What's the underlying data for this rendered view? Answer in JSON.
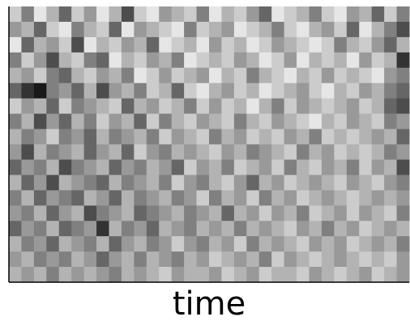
{
  "chart_data": {
    "type": "heatmap",
    "x_label": "time",
    "cmap": "gray_r",
    "zlim": [
      0,
      1
    ],
    "z": [
      [
        0.2,
        0.5,
        0.1,
        0.3,
        0.6,
        0.2,
        0.4,
        0.1,
        0.3,
        0.7,
        0.2,
        0.1,
        0.4,
        0.3,
        0.2,
        0.5,
        0.1,
        0.3,
        0.2,
        0.4,
        0.6,
        0.1,
        0.2,
        0.3,
        0.5,
        0.2,
        0.1,
        0.4,
        0.3,
        0.6,
        0.2,
        0.5
      ],
      [
        0.4,
        0.3,
        0.6,
        0.2,
        0.1,
        0.5,
        0.3,
        0.2,
        0.6,
        0.1,
        0.4,
        0.3,
        0.2,
        0.1,
        0.5,
        0.2,
        0.3,
        0.4,
        0.1,
        0.2,
        0.3,
        0.5,
        0.2,
        0.1,
        0.3,
        0.4,
        0.2,
        0.6,
        0.1,
        0.3,
        0.5,
        0.7
      ],
      [
        0.1,
        0.6,
        0.3,
        0.4,
        0.2,
        0.7,
        0.1,
        0.3,
        0.2,
        0.4,
        0.3,
        0.6,
        0.1,
        0.2,
        0.3,
        0.1,
        0.4,
        0.2,
        0.3,
        0.1,
        0.2,
        0.4,
        0.3,
        0.2,
        0.1,
        0.2,
        0.5,
        0.3,
        0.2,
        0.4,
        0.6,
        0.3
      ],
      [
        0.5,
        0.2,
        0.4,
        0.7,
        0.3,
        0.2,
        0.5,
        0.6,
        0.1,
        0.3,
        0.2,
        0.4,
        0.3,
        0.5,
        0.1,
        0.2,
        0.3,
        0.2,
        0.4,
        0.3,
        0.1,
        0.2,
        0.4,
        0.1,
        0.3,
        0.2,
        0.3,
        0.1,
        0.4,
        0.2,
        0.3,
        0.8
      ],
      [
        0.3,
        0.4,
        0.2,
        0.5,
        0.6,
        0.3,
        0.2,
        0.4,
        0.3,
        0.5,
        0.1,
        0.2,
        0.4,
        0.2,
        0.3,
        0.4,
        0.1,
        0.3,
        0.2,
        0.5,
        0.3,
        0.2,
        0.1,
        0.3,
        0.2,
        0.4,
        0.2,
        0.3,
        0.2,
        0.1,
        0.4,
        0.5
      ],
      [
        0.6,
        0.8,
        0.9,
        0.5,
        0.4,
        0.6,
        0.3,
        0.7,
        0.4,
        0.3,
        0.5,
        0.2,
        0.3,
        0.6,
        0.2,
        0.1,
        0.3,
        0.4,
        0.2,
        0.3,
        0.1,
        0.2,
        0.3,
        0.4,
        0.2,
        0.1,
        0.3,
        0.2,
        0.4,
        0.3,
        0.5,
        0.6
      ],
      [
        0.2,
        0.4,
        0.3,
        0.6,
        0.2,
        0.5,
        0.4,
        0.3,
        0.2,
        0.6,
        0.3,
        0.4,
        0.2,
        0.3,
        0.5,
        0.2,
        0.4,
        0.2,
        0.3,
        0.1,
        0.3,
        0.5,
        0.2,
        0.4,
        0.3,
        0.2,
        0.3,
        0.4,
        0.2,
        0.3,
        0.6,
        0.7
      ],
      [
        0.5,
        0.3,
        0.7,
        0.4,
        0.6,
        0.3,
        0.5,
        0.2,
        0.4,
        0.3,
        0.6,
        0.2,
        0.5,
        0.3,
        0.2,
        0.4,
        0.3,
        0.2,
        0.5,
        0.3,
        0.2,
        0.4,
        0.3,
        0.2,
        0.1,
        0.3,
        0.2,
        0.4,
        0.3,
        0.2,
        0.5,
        0.4
      ],
      [
        0.3,
        0.5,
        0.4,
        0.2,
        0.5,
        0.4,
        0.6,
        0.3,
        0.5,
        0.4,
        0.3,
        0.5,
        0.2,
        0.4,
        0.3,
        0.2,
        0.5,
        0.3,
        0.4,
        0.2,
        0.3,
        0.2,
        0.4,
        0.3,
        0.5,
        0.2,
        0.3,
        0.2,
        0.3,
        0.4,
        0.3,
        0.6
      ],
      [
        0.4,
        0.7,
        0.3,
        0.5,
        0.4,
        0.3,
        0.6,
        0.4,
        0.3,
        0.6,
        0.2,
        0.4,
        0.5,
        0.3,
        0.4,
        0.3,
        0.2,
        0.4,
        0.3,
        0.5,
        0.4,
        0.3,
        0.2,
        0.5,
        0.3,
        0.4,
        0.2,
        0.3,
        0.2,
        0.3,
        0.5,
        0.4
      ],
      [
        0.6,
        0.4,
        0.5,
        0.3,
        0.7,
        0.5,
        0.4,
        0.3,
        0.6,
        0.4,
        0.5,
        0.3,
        0.4,
        0.6,
        0.2,
        0.4,
        0.3,
        0.5,
        0.2,
        0.3,
        0.4,
        0.2,
        0.5,
        0.3,
        0.2,
        0.4,
        0.3,
        0.5,
        0.2,
        0.4,
        0.3,
        0.7
      ],
      [
        0.3,
        0.6,
        0.4,
        0.7,
        0.3,
        0.4,
        0.5,
        0.6,
        0.3,
        0.5,
        0.4,
        0.3,
        0.5,
        0.2,
        0.4,
        0.5,
        0.3,
        0.2,
        0.4,
        0.6,
        0.3,
        0.4,
        0.2,
        0.3,
        0.4,
        0.3,
        0.2,
        0.4,
        0.3,
        0.2,
        0.4,
        0.5
      ],
      [
        0.5,
        0.3,
        0.6,
        0.4,
        0.5,
        0.6,
        0.3,
        0.4,
        0.6,
        0.3,
        0.5,
        0.4,
        0.3,
        0.5,
        0.4,
        0.2,
        0.5,
        0.3,
        0.4,
        0.2,
        0.5,
        0.3,
        0.4,
        0.2,
        0.3,
        0.4,
        0.3,
        0.2,
        0.3,
        0.4,
        0.3,
        0.4
      ],
      [
        0.4,
        0.5,
        0.3,
        0.6,
        0.4,
        0.3,
        0.7,
        0.5,
        0.4,
        0.3,
        0.6,
        0.5,
        0.4,
        0.3,
        0.5,
        0.4,
        0.3,
        0.6,
        0.3,
        0.4,
        0.2,
        0.4,
        0.3,
        0.5,
        0.2,
        0.3,
        0.4,
        0.2,
        0.4,
        0.3,
        0.2,
        0.5
      ],
      [
        0.6,
        0.4,
        0.5,
        0.3,
        0.6,
        0.5,
        0.4,
        0.8,
        0.3,
        0.5,
        0.4,
        0.6,
        0.3,
        0.4,
        0.5,
        0.3,
        0.4,
        0.3,
        0.5,
        0.3,
        0.4,
        0.3,
        0.2,
        0.4,
        0.3,
        0.5,
        0.3,
        0.4,
        0.2,
        0.3,
        0.4,
        0.3
      ],
      [
        0.3,
        0.5,
        0.4,
        0.6,
        0.3,
        0.4,
        0.5,
        0.3,
        0.6,
        0.4,
        0.3,
        0.5,
        0.4,
        0.2,
        0.4,
        0.5,
        0.3,
        0.4,
        0.2,
        0.5,
        0.3,
        0.4,
        0.3,
        0.2,
        0.4,
        0.3,
        0.4,
        0.2,
        0.3,
        0.4,
        0.3,
        0.5
      ],
      [
        0.4,
        0.3,
        0.5,
        0.4,
        0.5,
        0.3,
        0.4,
        0.6,
        0.4,
        0.3,
        0.5,
        0.3,
        0.4,
        0.5,
        0.3,
        0.4,
        0.2,
        0.3,
        0.4,
        0.3,
        0.5,
        0.2,
        0.4,
        0.3,
        0.2,
        0.3,
        0.4,
        0.3,
        0.2,
        0.3,
        0.2,
        0.4
      ],
      [
        0.3,
        0.4,
        0.3,
        0.5,
        0.3,
        0.4,
        0.3,
        0.4,
        0.5,
        0.3,
        0.4,
        0.3,
        0.2,
        0.4,
        0.3,
        0.3,
        0.4,
        0.2,
        0.3,
        0.4,
        0.2,
        0.3,
        0.3,
        0.2,
        0.4,
        0.3,
        0.2,
        0.3,
        0.4,
        0.2,
        0.3,
        0.4
      ]
    ]
  }
}
